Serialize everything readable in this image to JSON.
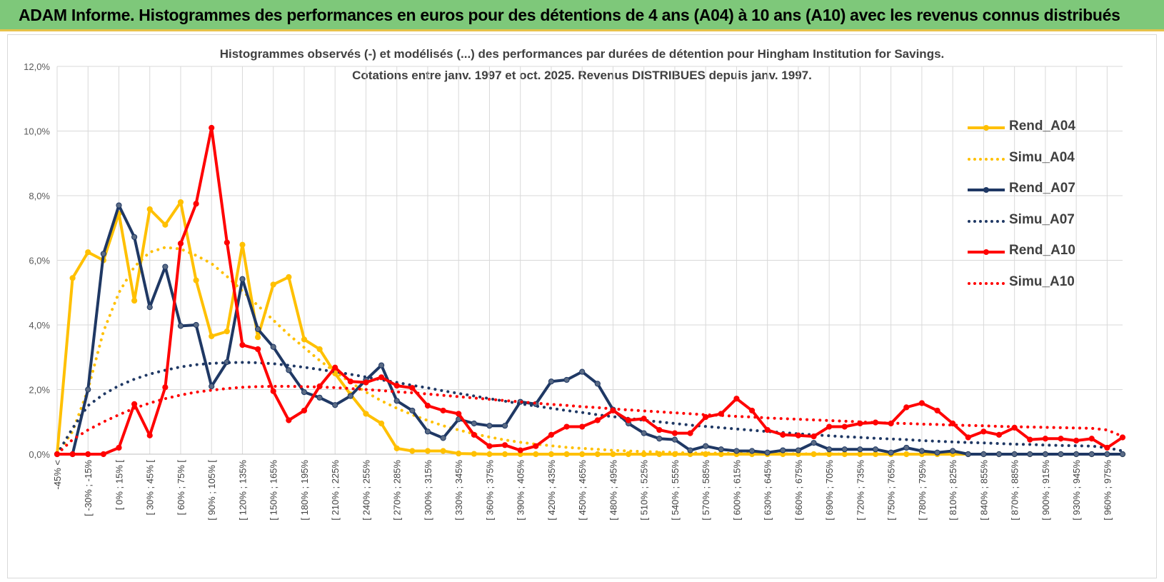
{
  "banner": {
    "title": "ADAM Informe. Histogrammes des performances en euros pour des détentions de 4 ans (A04) à 10 ans (A10) avec les revenus connus distribués"
  },
  "chart_data": {
    "type": "line",
    "title_line1": "Histogrammes observés (-) et modélisés (...) des performances par durées de détention pour Hingham Institution for Savings.",
    "title_line2": "Cotations entre janv. 1997 et oct. 2025.  Revenus DISTRIBUES depuis janv. 1997.",
    "xlabel": "",
    "ylabel": "",
    "ylim": [
      0,
      12
    ],
    "yticks": [
      "0,0%",
      "2,0%",
      "4,0%",
      "6,0%",
      "8,0%",
      "10,0%",
      "12,0%"
    ],
    "grid": true,
    "legend_position": "right",
    "x_labels": [
      "-45% <",
      "[ -30% ; -15%",
      "[ 0% ; 15% [",
      "[ 30% ; 45% [",
      "[ 60% ; 75% [",
      "[ 90% ; 105% [",
      "[ 120% ; 135%",
      "[ 150% ; 165%",
      "[ 180% ; 195%",
      "[ 210% ; 225%",
      "[ 240% ; 255%",
      "[ 270% ; 285%",
      "[ 300% ; 315%",
      "[ 330% ; 345%",
      "[ 360% ; 375%",
      "[ 390% ; 405%",
      "[ 420% ; 435%",
      "[ 450% ; 465%",
      "[ 480% ; 495%",
      "[ 510% ; 525%",
      "[ 540% ; 555%",
      "[ 570% ; 585%",
      "[ 600% ; 615%",
      "[ 630% ; 645%",
      "[ 660% ; 675%",
      "[ 690% ; 705%",
      "[ 720% ; 735%",
      "[ 750% ; 765%",
      "[ 780% ; 795%",
      "[ 810% ; 825%",
      "[ 840% ; 855%",
      "[ 870% ; 885%",
      "[ 900% ; 915%",
      "[ 930% ; 945%",
      "[ 960% ; 975%"
    ],
    "n_categories": 70,
    "series": [
      {
        "name": "Rend_A04",
        "style": "solid",
        "color": "#ffc000",
        "markers": true,
        "values": [
          0,
          5.45,
          6.25,
          6.0,
          7.45,
          4.75,
          7.58,
          7.1,
          7.8,
          5.38,
          3.65,
          3.8,
          6.48,
          3.62,
          5.25,
          5.48,
          3.55,
          3.25,
          2.5,
          1.85,
          1.25,
          0.95,
          0.18,
          0.1,
          0.1,
          0.1,
          0.02,
          0.01,
          0,
          0,
          0,
          0,
          0,
          0,
          0,
          0,
          0,
          0,
          0,
          0,
          0,
          0,
          0,
          0,
          0,
          0,
          0,
          0,
          0,
          0,
          0,
          0,
          0,
          0,
          0,
          0,
          0,
          0,
          0,
          0,
          0,
          0,
          0,
          0,
          0,
          0,
          0,
          0,
          0,
          0
        ]
      },
      {
        "name": "Simu_A04",
        "style": "dotted",
        "color": "#ffc000",
        "values": [
          0,
          0.7,
          2.0,
          3.8,
          5.0,
          5.8,
          6.25,
          6.4,
          6.35,
          6.15,
          5.9,
          5.5,
          5.05,
          4.6,
          4.15,
          3.7,
          3.3,
          2.9,
          2.55,
          2.22,
          1.92,
          1.65,
          1.42,
          1.22,
          1.04,
          0.88,
          0.75,
          0.63,
          0.53,
          0.44,
          0.37,
          0.31,
          0.26,
          0.21,
          0.18,
          0.15,
          0.12,
          0.1,
          0.08,
          0.07,
          0.05,
          0.04,
          0.04,
          0.03,
          0.02,
          0.02,
          0.02,
          0.01,
          0.01,
          0.01,
          0.01,
          0,
          0,
          0,
          0,
          0,
          0,
          0,
          0,
          0,
          0,
          0,
          0,
          0,
          0,
          0,
          0,
          0,
          0,
          0
        ]
      },
      {
        "name": "Rend_A07",
        "style": "solid",
        "color": "#1f3864",
        "markers": true,
        "values": [
          0,
          0,
          2.0,
          6.2,
          7.7,
          6.72,
          4.55,
          5.8,
          3.97,
          4.0,
          2.1,
          2.85,
          5.42,
          3.87,
          3.32,
          2.6,
          1.92,
          1.75,
          1.52,
          1.8,
          2.3,
          2.75,
          1.65,
          1.35,
          0.7,
          0.5,
          1.08,
          0.95,
          0.88,
          0.88,
          1.62,
          1.55,
          2.25,
          2.3,
          2.55,
          2.18,
          1.38,
          0.95,
          0.65,
          0.48,
          0.45,
          0.12,
          0.25,
          0.15,
          0.1,
          0.1,
          0.05,
          0.12,
          0.12,
          0.35,
          0.15,
          0.15,
          0.15,
          0.15,
          0.05,
          0.2,
          0.1,
          0.05,
          0.1,
          0,
          0,
          0,
          0,
          0,
          0,
          0,
          0,
          0,
          0,
          0
        ]
      },
      {
        "name": "Simu_A07",
        "style": "dotted",
        "color": "#1f3864",
        "values": [
          0,
          0.8,
          1.5,
          1.85,
          2.12,
          2.32,
          2.48,
          2.6,
          2.7,
          2.77,
          2.81,
          2.83,
          2.84,
          2.83,
          2.8,
          2.75,
          2.69,
          2.62,
          2.55,
          2.47,
          2.39,
          2.3,
          2.22,
          2.13,
          2.05,
          1.96,
          1.88,
          1.8,
          1.72,
          1.64,
          1.56,
          1.49,
          1.42,
          1.35,
          1.29,
          1.22,
          1.16,
          1.11,
          1.05,
          1.0,
          0.95,
          0.9,
          0.86,
          0.82,
          0.78,
          0.74,
          0.7,
          0.67,
          0.63,
          0.6,
          0.57,
          0.54,
          0.52,
          0.49,
          0.47,
          0.45,
          0.42,
          0.4,
          0.38,
          0.36,
          0.35,
          0.33,
          0.31,
          0.3,
          0.28,
          0.27,
          0.26,
          0.25,
          0.2,
          0.1
        ]
      },
      {
        "name": "Rend_A10",
        "style": "solid",
        "color": "#ff0000",
        "markers": true,
        "values": [
          0,
          0,
          0,
          0,
          0.2,
          1.55,
          0.58,
          2.07,
          6.52,
          7.75,
          10.1,
          6.55,
          3.38,
          3.25,
          1.95,
          1.05,
          1.35,
          2.1,
          2.68,
          2.25,
          2.22,
          2.38,
          2.12,
          2.05,
          1.5,
          1.35,
          1.25,
          0.6,
          0.25,
          0.28,
          0.12,
          0.25,
          0.6,
          0.85,
          0.85,
          1.05,
          1.35,
          1.05,
          1.1,
          0.75,
          0.65,
          0.65,
          1.15,
          1.25,
          1.72,
          1.35,
          0.75,
          0.6,
          0.58,
          0.55,
          0.85,
          0.85,
          0.95,
          0.98,
          0.95,
          1.45,
          1.58,
          1.35,
          0.95,
          0.52,
          0.7,
          0.6,
          0.82,
          0.45,
          0.48,
          0.48,
          0.42,
          0.48,
          0.2,
          0.52
        ]
      },
      {
        "name": "Simu_A10",
        "style": "dotted",
        "color": "#ff0000",
        "values": [
          0,
          0.45,
          0.75,
          1.0,
          1.22,
          1.42,
          1.58,
          1.72,
          1.83,
          1.92,
          1.98,
          2.03,
          2.07,
          2.09,
          2.1,
          2.1,
          2.09,
          2.08,
          2.06,
          2.03,
          2.0,
          1.97,
          1.93,
          1.9,
          1.86,
          1.82,
          1.78,
          1.74,
          1.7,
          1.66,
          1.62,
          1.58,
          1.54,
          1.51,
          1.47,
          1.44,
          1.4,
          1.37,
          1.34,
          1.31,
          1.28,
          1.25,
          1.22,
          1.2,
          1.17,
          1.15,
          1.12,
          1.1,
          1.08,
          1.06,
          1.04,
          1.02,
          1.0,
          0.98,
          0.96,
          0.95,
          0.93,
          0.92,
          0.9,
          0.89,
          0.88,
          0.86,
          0.85,
          0.84,
          0.83,
          0.82,
          0.81,
          0.8,
          0.75,
          0.55
        ]
      }
    ]
  }
}
